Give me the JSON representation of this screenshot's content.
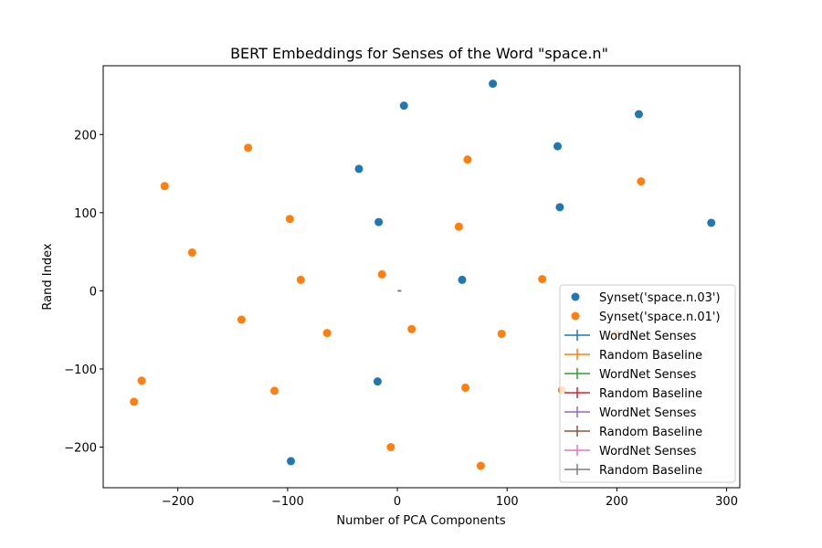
{
  "chart_data": {
    "type": "scatter",
    "title": "BERT Embeddings for Senses of the Word \"space.n\"",
    "xlabel": "Number of PCA Components",
    "ylabel": "Rand Index",
    "xlim": [
      -268,
      312
    ],
    "ylim": [
      -252,
      288
    ],
    "xticks": [
      -200,
      -100,
      0,
      100,
      200,
      300
    ],
    "yticks": [
      -200,
      -100,
      0,
      100,
      200
    ],
    "xtick_labels": [
      "−200",
      "−100",
      "0",
      "100",
      "200",
      "300"
    ],
    "ytick_labels": [
      "−200",
      "−100",
      "0",
      "100",
      "200"
    ],
    "grid": false,
    "legend_position": "lower-right",
    "series": [
      {
        "name": "Synset('space.n.03')",
        "kind": "scatter",
        "color": "#1f77b4",
        "points": [
          [
            87,
            265
          ],
          [
            6,
            237
          ],
          [
            220,
            226
          ],
          [
            146,
            185
          ],
          [
            -35,
            156
          ],
          [
            148,
            107
          ],
          [
            -17,
            88
          ],
          [
            286,
            87
          ],
          [
            59,
            14
          ],
          [
            -18,
            -116
          ],
          [
            -97,
            -218
          ]
        ]
      },
      {
        "name": "Synset('space.n.01')",
        "kind": "scatter",
        "color": "#ff7f0e",
        "points": [
          [
            -136,
            183
          ],
          [
            64,
            168
          ],
          [
            222,
            140
          ],
          [
            -212,
            134
          ],
          [
            -98,
            92
          ],
          [
            56,
            82
          ],
          [
            -187,
            49
          ],
          [
            -14,
            21
          ],
          [
            -88,
            14
          ],
          [
            132,
            15
          ],
          [
            -142,
            -37
          ],
          [
            13,
            -49
          ],
          [
            -64,
            -54
          ],
          [
            95,
            -55
          ],
          [
            200,
            -55
          ],
          [
            -233,
            -115
          ],
          [
            -112,
            -128
          ],
          [
            62,
            -124
          ],
          [
            150,
            -127
          ],
          [
            -240,
            -142
          ],
          [
            -6,
            -200
          ],
          [
            76,
            -224
          ]
        ]
      },
      {
        "name": "WordNet Senses",
        "kind": "errorbar",
        "color": "#1f77b4",
        "points": [
          [
            2,
            0
          ]
        ]
      },
      {
        "name": "Random Baseline",
        "kind": "errorbar",
        "color": "#ff7f0e",
        "points": [
          [
            2,
            0
          ]
        ]
      },
      {
        "name": "WordNet Senses",
        "kind": "errorbar",
        "color": "#2ca02c",
        "points": [
          [
            2,
            0
          ]
        ]
      },
      {
        "name": "Random Baseline",
        "kind": "errorbar",
        "color": "#d62728",
        "points": [
          [
            2,
            0
          ]
        ]
      },
      {
        "name": "WordNet Senses",
        "kind": "errorbar",
        "color": "#9467bd",
        "points": [
          [
            2,
            0
          ]
        ]
      },
      {
        "name": "Random Baseline",
        "kind": "errorbar",
        "color": "#8c564b",
        "points": [
          [
            2,
            0
          ]
        ]
      },
      {
        "name": "WordNet Senses",
        "kind": "errorbar",
        "color": "#e377c2",
        "points": [
          [
            2,
            0
          ]
        ]
      },
      {
        "name": "Random Baseline",
        "kind": "errorbar",
        "color": "#7f7f7f",
        "points": [
          [
            2,
            0
          ]
        ]
      }
    ]
  }
}
